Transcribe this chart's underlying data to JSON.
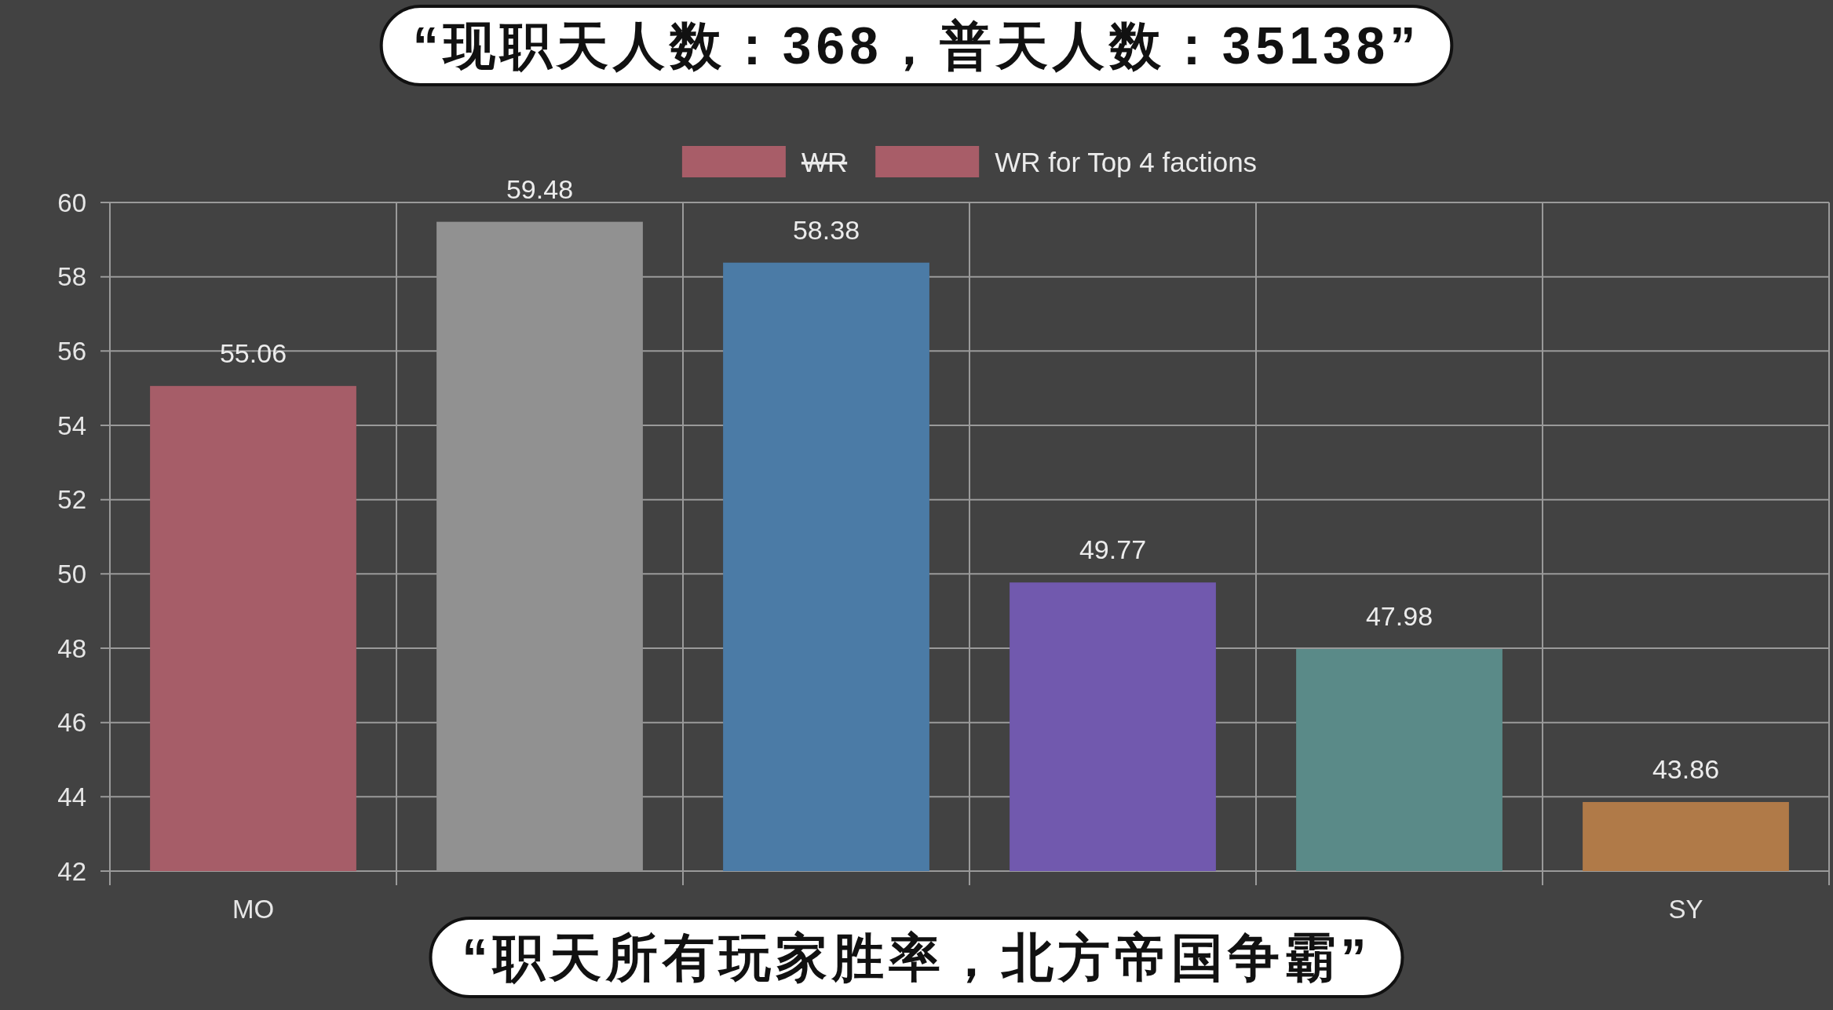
{
  "chart_data": {
    "type": "bar",
    "title": "“现职天人数：368，普天人数：35138”",
    "annotations": [
      "“职天所有玩家胜率，北方帝国争霸”"
    ],
    "categories": [
      "MO",
      null,
      null,
      null,
      null,
      "SY"
    ],
    "series": [
      {
        "name": "WR",
        "color": "#a85d68",
        "values": [
          null,
          null,
          null,
          null,
          null,
          null
        ]
      },
      {
        "name": "WR for Top 4 factions",
        "color": "#a85d68",
        "colors": [
          "#a65d68",
          "#919191",
          "#4b7ba6",
          "#7159ae",
          "#5a8a88",
          "#b07a48"
        ],
        "values": [
          55.06,
          59.48,
          58.38,
          49.77,
          47.98,
          43.86
        ]
      }
    ],
    "ylim": [
      42,
      60
    ],
    "yticks": [
      42,
      44,
      46,
      48,
      50,
      52,
      54,
      56,
      58,
      60
    ],
    "grid": true,
    "legend": "top",
    "data_labels": true
  }
}
